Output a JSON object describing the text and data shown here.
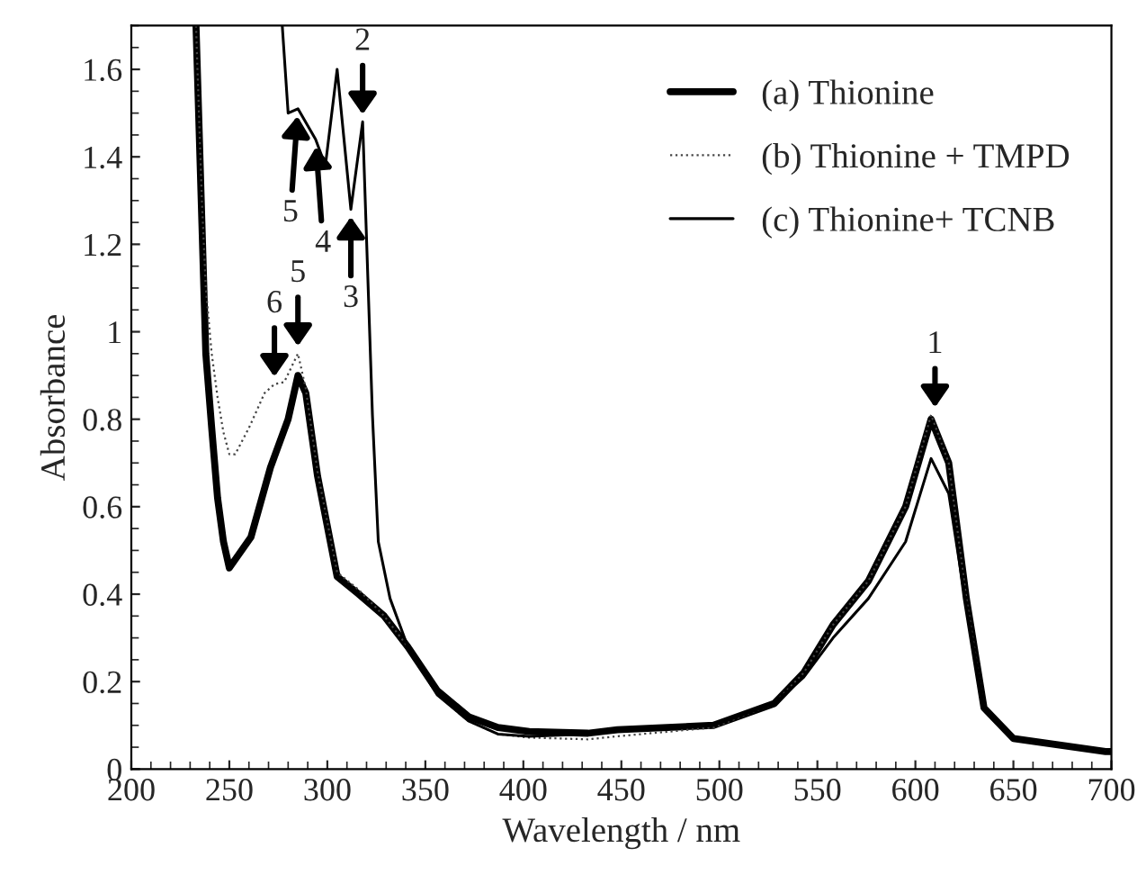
{
  "chart_data": {
    "type": "line",
    "xlabel": "Wavelength / nm",
    "ylabel": "Absorbance",
    "xlim": [
      200,
      700
    ],
    "ylim": [
      0,
      1.7
    ],
    "xticks": [
      200,
      250,
      300,
      350,
      400,
      450,
      500,
      550,
      600,
      650,
      700
    ],
    "yticks": [
      0,
      0.2,
      0.4,
      0.6,
      0.8,
      1,
      1.2,
      1.4,
      1.6
    ],
    "legend": "top right",
    "grid": false,
    "series": [
      {
        "name": "(a) Thionine",
        "color": "#000000",
        "line_style": "solid",
        "x": [
          233,
          236,
          238,
          241,
          244,
          247,
          250,
          261,
          271,
          280,
          285,
          289,
          295,
          305,
          316,
          329,
          341,
          356,
          372,
          387,
          403,
          433,
          448,
          497,
          528,
          543,
          558,
          576,
          595,
          608,
          617,
          626,
          635,
          650,
          697,
          700
        ],
        "values": [
          1.7,
          1.25,
          0.95,
          0.78,
          0.62,
          0.52,
          0.46,
          0.53,
          0.69,
          0.8,
          0.9,
          0.86,
          0.67,
          0.44,
          0.4,
          0.35,
          0.28,
          0.18,
          0.12,
          0.095,
          0.086,
          0.082,
          0.09,
          0.1,
          0.15,
          0.22,
          0.33,
          0.43,
          0.6,
          0.8,
          0.7,
          0.39,
          0.14,
          0.07,
          0.04,
          0.04
        ]
      },
      {
        "name": "(b) Thionine + TMPD",
        "color": "#444444",
        "line_style": "dotted",
        "x": [
          233,
          236,
          238,
          241,
          244,
          247,
          250,
          253,
          260,
          268,
          273,
          278,
          285,
          289,
          295,
          305,
          316,
          329,
          341,
          356,
          372,
          387,
          403,
          433,
          448,
          497,
          528,
          543,
          558,
          576,
          595,
          608,
          617,
          626,
          635,
          650,
          697,
          700
        ],
        "values": [
          1.7,
          1.3,
          1.1,
          0.95,
          0.85,
          0.77,
          0.72,
          0.72,
          0.78,
          0.86,
          0.88,
          0.885,
          0.95,
          0.87,
          0.68,
          0.45,
          0.41,
          0.35,
          0.28,
          0.17,
          0.11,
          0.08,
          0.072,
          0.068,
          0.075,
          0.095,
          0.15,
          0.22,
          0.33,
          0.43,
          0.6,
          0.81,
          0.7,
          0.39,
          0.14,
          0.07,
          0.04,
          0.04
        ]
      },
      {
        "name": "(c) Thionine+ TCNB",
        "color": "#000000",
        "line_style": "solid",
        "x": [
          277,
          280,
          285,
          294,
          299,
          305,
          312,
          318,
          323,
          326,
          332,
          341,
          356,
          372,
          387,
          403,
          433,
          448,
          497,
          528,
          543,
          558,
          576,
          595,
          608,
          617,
          626,
          635,
          650,
          697,
          700
        ],
        "values": [
          1.7,
          1.5,
          1.51,
          1.44,
          1.38,
          1.6,
          1.28,
          1.48,
          0.81,
          0.52,
          0.39,
          0.28,
          0.17,
          0.11,
          0.08,
          0.075,
          0.08,
          0.088,
          0.1,
          0.15,
          0.21,
          0.3,
          0.39,
          0.52,
          0.71,
          0.63,
          0.37,
          0.14,
          0.07,
          0.04,
          0.04
        ]
      }
    ],
    "annotations": [
      {
        "text": "1",
        "x": 610,
        "y": 0.81
      },
      {
        "text": "2",
        "x": 318,
        "y": 1.48
      },
      {
        "text": "3",
        "x": 312,
        "y": 1.28
      },
      {
        "text": "4",
        "x": 294,
        "y": 1.44
      },
      {
        "text": "5",
        "x": 285,
        "y": 1.51
      },
      {
        "text": "6",
        "x": 273,
        "y": 0.88
      },
      {
        "text": "5",
        "x": 285,
        "y": 0.95
      }
    ]
  }
}
